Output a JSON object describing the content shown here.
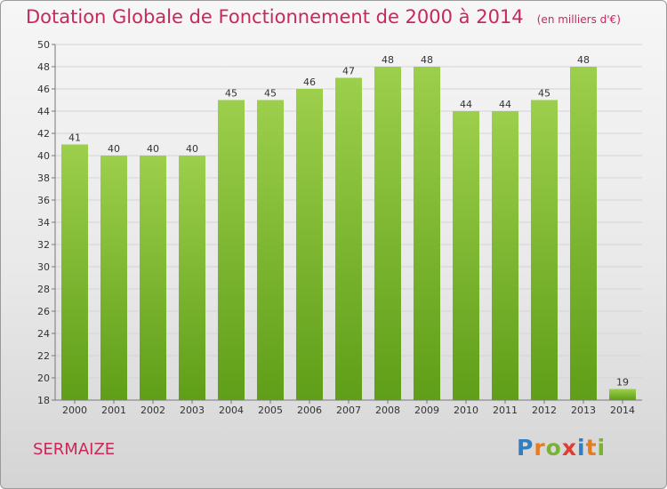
{
  "title": "Dotation Globale de Fonctionnement de 2000 à 2014",
  "subtitle": "(en milliers d'€)",
  "commune": "SERMAIZE",
  "logo": {
    "letters": [
      "P",
      "r",
      "o",
      "x",
      "i",
      "t",
      "i"
    ],
    "colors": [
      "#2f7fc1",
      "#e87b1e",
      "#7ab32e",
      "#e03c31",
      "#2f7fc1",
      "#e87b1e",
      "#7ab32e"
    ]
  },
  "colors": {
    "bar_top": "#9ccf4c",
    "bar_bottom": "#5f9e18",
    "title": "#c8285a"
  },
  "chart_data": {
    "type": "bar",
    "categories": [
      "2000",
      "2001",
      "2002",
      "2003",
      "2004",
      "2005",
      "2006",
      "2007",
      "2008",
      "2009",
      "2010",
      "2011",
      "2012",
      "2013",
      "2014"
    ],
    "values": [
      41,
      40,
      40,
      40,
      45,
      45,
      46,
      47,
      48,
      48,
      44,
      44,
      45,
      48,
      19
    ],
    "ylim": [
      18,
      50
    ],
    "yticks": [
      18,
      20,
      22,
      24,
      26,
      28,
      30,
      32,
      34,
      36,
      38,
      40,
      42,
      44,
      46,
      48,
      50
    ],
    "grid": true,
    "title": "Dotation Globale de Fonctionnement de 2000 à 2014",
    "xlabel": "",
    "ylabel": ""
  }
}
